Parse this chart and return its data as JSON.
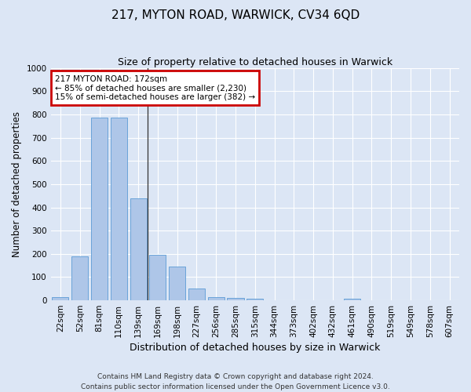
{
  "title": "217, MYTON ROAD, WARWICK, CV34 6QD",
  "subtitle": "Size of property relative to detached houses in Warwick",
  "xlabel": "Distribution of detached houses by size in Warwick",
  "ylabel": "Number of detached properties",
  "footer": "Contains HM Land Registry data © Crown copyright and database right 2024.\nContains public sector information licensed under the Open Government Licence v3.0.",
  "categories": [
    "22sqm",
    "52sqm",
    "81sqm",
    "110sqm",
    "139sqm",
    "169sqm",
    "198sqm",
    "227sqm",
    "256sqm",
    "285sqm",
    "315sqm",
    "344sqm",
    "373sqm",
    "402sqm",
    "432sqm",
    "461sqm",
    "490sqm",
    "519sqm",
    "549sqm",
    "578sqm",
    "607sqm"
  ],
  "values": [
    15,
    190,
    785,
    785,
    440,
    195,
    145,
    50,
    15,
    10,
    8,
    0,
    0,
    0,
    0,
    8,
    0,
    0,
    0,
    0,
    0
  ],
  "bar_color": "#aec6e8",
  "bar_edge_color": "#5b9bd5",
  "annotation_text": "217 MYTON ROAD: 172sqm\n← 85% of detached houses are smaller (2,230)\n15% of semi-detached houses are larger (382) →",
  "annotation_box_color": "#ffffff",
  "annotation_box_edge_color": "#cc0000",
  "ylim": [
    0,
    1000
  ],
  "background_color": "#dce6f5",
  "plot_bg_color": "#dce6f5",
  "grid_color": "#ffffff",
  "title_fontsize": 11,
  "subtitle_fontsize": 9,
  "tick_fontsize": 7.5,
  "ylabel_fontsize": 8.5,
  "xlabel_fontsize": 9,
  "footer_fontsize": 6.5
}
